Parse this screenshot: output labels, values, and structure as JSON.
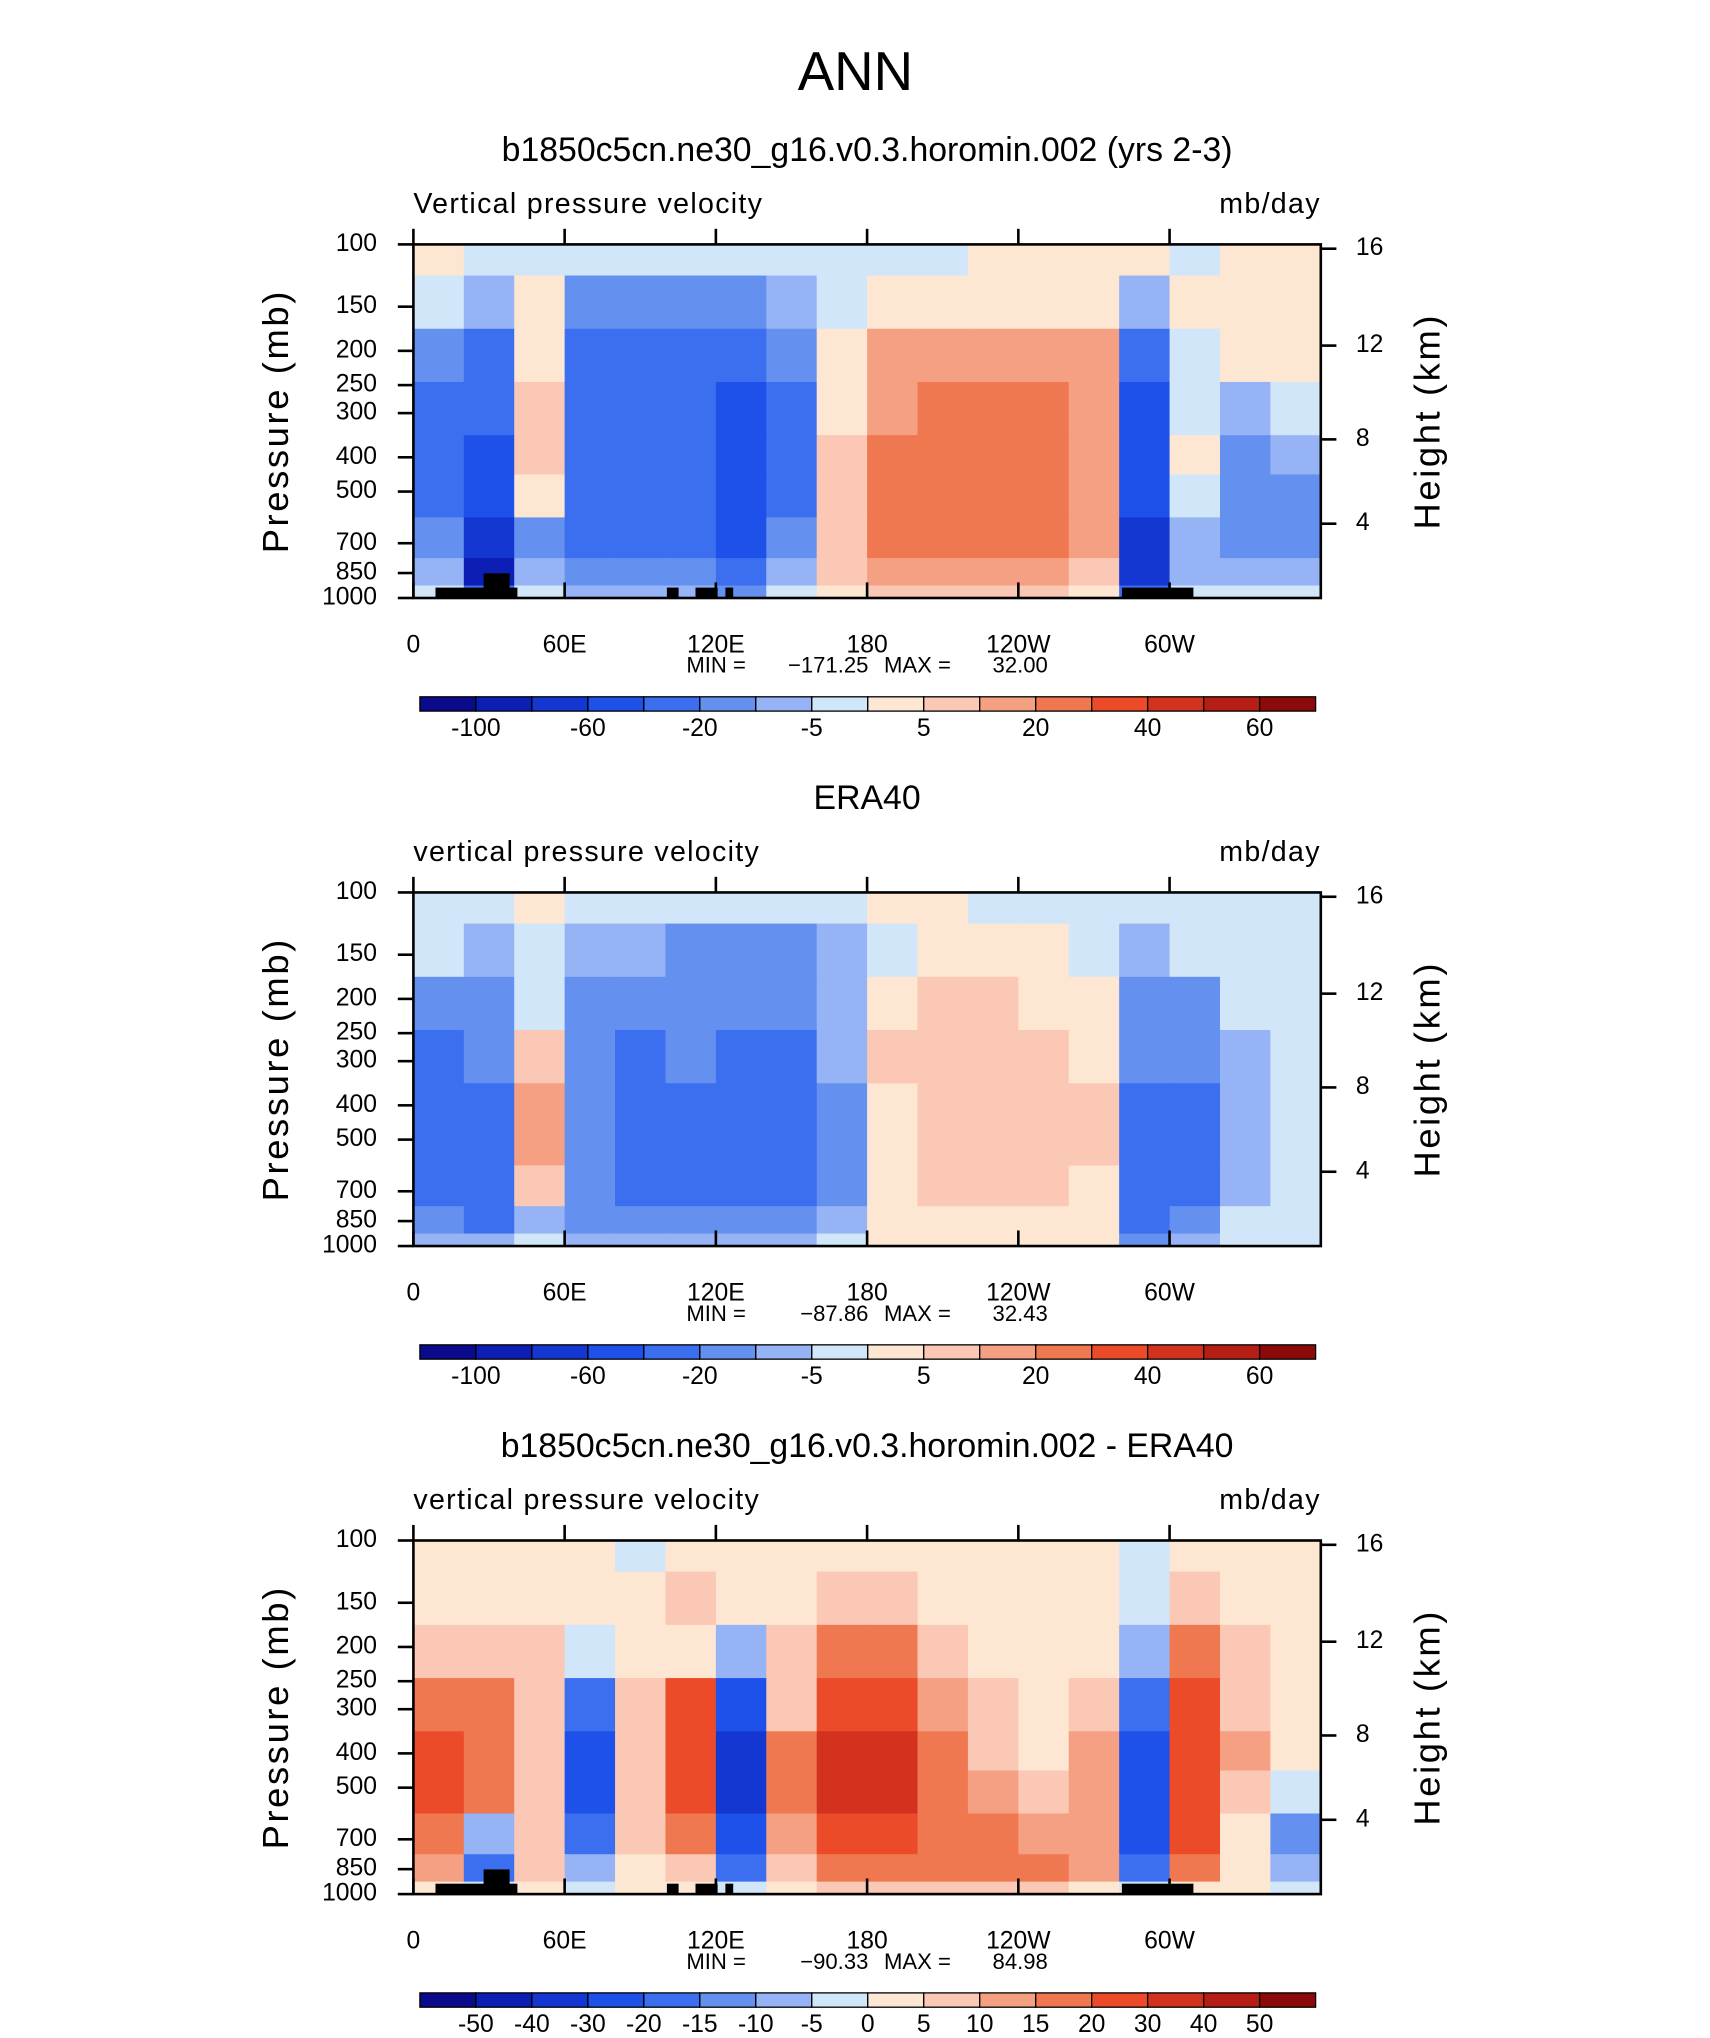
{
  "title": "ANN",
  "chart_data": [
    {
      "type": "contour",
      "title": "b1850c5cn.ne30_g16.v0.3.horomin.002 (yrs 2-3)",
      "subtitle": "Vertical pressure velocity",
      "units": "mb/day",
      "ylabel": "Pressure (mb)",
      "y2label": "Height (km)",
      "x": [
        10,
        30,
        50,
        70,
        90,
        110,
        130,
        150,
        170,
        190,
        210,
        230,
        250,
        270,
        290,
        310,
        330,
        350
      ],
      "y": [
        100,
        150,
        200,
        300,
        400,
        500,
        700,
        850,
        1000
      ],
      "z": [
        [
          5,
          -5,
          -5,
          -5,
          -5,
          -5,
          -5,
          -5,
          -5,
          -5,
          0,
          5,
          5,
          5,
          5,
          -5,
          5,
          5
        ],
        [
          -5,
          -10,
          5,
          -20,
          -20,
          -20,
          -20,
          -10,
          -5,
          5,
          5,
          5,
          5,
          5,
          -10,
          5,
          5,
          5
        ],
        [
          -20,
          -40,
          5,
          -40,
          -40,
          -40,
          -40,
          -20,
          5,
          20,
          20,
          20,
          20,
          20,
          -40,
          -5,
          5,
          5
        ],
        [
          -40,
          -40,
          10,
          -40,
          -40,
          -40,
          -60,
          -40,
          5,
          20,
          30,
          30,
          30,
          20,
          -60,
          -5,
          -10,
          -5
        ],
        [
          -40,
          -60,
          10,
          -40,
          -40,
          -40,
          -60,
          -40,
          10,
          30,
          30,
          30,
          30,
          20,
          -60,
          5,
          -20,
          -10
        ],
        [
          -40,
          -60,
          5,
          -40,
          -40,
          -40,
          -60,
          -40,
          10,
          30,
          30,
          30,
          30,
          20,
          -60,
          -5,
          -20,
          -20
        ],
        [
          -20,
          -80,
          -20,
          -40,
          -40,
          -40,
          -60,
          -20,
          10,
          30,
          30,
          30,
          30,
          20,
          -80,
          -10,
          -20,
          -20
        ],
        [
          -10,
          -100,
          -10,
          -20,
          -20,
          -20,
          -40,
          -10,
          10,
          20,
          20,
          20,
          20,
          10,
          -80,
          -10,
          -10,
          -10
        ],
        [
          -5,
          -40,
          -5,
          -10,
          -10,
          -10,
          -20,
          -5,
          5,
          10,
          10,
          10,
          10,
          5,
          -40,
          -5,
          -5,
          -5
        ]
      ],
      "xlim": [
        0,
        360
      ],
      "xticks": [
        0,
        {
          "value": 60,
          "label": "60E"
        },
        {
          "value": 120,
          "label": "120E"
        },
        180,
        {
          "value": 240,
          "label": "120W"
        },
        {
          "value": 300,
          "label": "60W"
        }
      ],
      "ylim": [
        1000,
        100
      ],
      "ylog": true,
      "yticks": [
        100,
        150,
        200,
        250,
        300,
        400,
        500,
        700,
        850,
        1000
      ],
      "y2ticks": [
        4,
        8,
        12,
        16
      ],
      "stats": {
        "min_text": "MIN =",
        "min": {
          "value": -171.25,
          "label": "−171.25"
        },
        "max_text": "MAX =",
        "max": {
          "value": 32,
          "label": "32.00"
        }
      },
      "levels": [
        -100,
        -80,
        -60,
        -40,
        -20,
        -10,
        -5,
        0,
        5,
        10,
        20,
        30,
        40,
        50,
        60
      ],
      "colorbar_ticks": [
        -100,
        -60,
        -20,
        -5,
        5,
        20,
        40,
        60
      ],
      "colors": [
        "#0a0a8c",
        "#0c1eb4",
        "#1437d2",
        "#1e50ea",
        "#3c6ef0",
        "#6490f0",
        "#96b4f5",
        "#d2e6fa",
        "#fde6d2",
        "#fac8b4",
        "#f5a082",
        "#f07850",
        "#eb4b28",
        "#d2321e",
        "#b41e14",
        "#8c0a0a"
      ]
    },
    {
      "type": "contour",
      "title": "ERA40",
      "subtitle": "vertical pressure velocity",
      "units": "mb/day",
      "ylabel": "Pressure (mb)",
      "y2label": "Height (km)",
      "x": [
        10,
        30,
        50,
        70,
        90,
        110,
        130,
        150,
        170,
        190,
        210,
        230,
        250,
        270,
        290,
        310,
        330,
        350
      ],
      "y": [
        100,
        150,
        200,
        300,
        400,
        500,
        700,
        850,
        1000
      ],
      "z": [
        [
          -5,
          -5,
          5,
          -5,
          -5,
          -5,
          -5,
          -5,
          -5,
          5,
          5,
          -5,
          -5,
          -5,
          -5,
          -5,
          -5,
          -5
        ],
        [
          -5,
          -10,
          -5,
          -10,
          -10,
          -20,
          -20,
          -20,
          -10,
          -5,
          5,
          5,
          5,
          -5,
          -10,
          -5,
          -5,
          -5
        ],
        [
          -20,
          -20,
          -5,
          -20,
          -20,
          -20,
          -20,
          -20,
          -10,
          5,
          10,
          10,
          5,
          5,
          -20,
          -20,
          -5,
          -5
        ],
        [
          -40,
          -20,
          10,
          -20,
          -40,
          -20,
          -40,
          -40,
          -10,
          10,
          10,
          10,
          10,
          5,
          -20,
          -20,
          -10,
          -5
        ],
        [
          -40,
          -40,
          20,
          -20,
          -40,
          -40,
          -40,
          -40,
          -20,
          5,
          10,
          10,
          10,
          10,
          -40,
          -40,
          -10,
          -5
        ],
        [
          -40,
          -40,
          20,
          -20,
          -40,
          -40,
          -40,
          -40,
          -20,
          5,
          10,
          10,
          10,
          10,
          -40,
          -40,
          -10,
          -5
        ],
        [
          -40,
          -40,
          10,
          -20,
          -40,
          -40,
          -40,
          -40,
          -20,
          5,
          10,
          10,
          10,
          5,
          -40,
          -40,
          -10,
          -5
        ],
        [
          -20,
          -40,
          -10,
          -20,
          -20,
          -20,
          -20,
          -20,
          -10,
          5,
          5,
          5,
          5,
          5,
          -40,
          -20,
          -5,
          -5
        ],
        [
          -10,
          -10,
          -5,
          -10,
          -10,
          -10,
          -10,
          -10,
          -5,
          5,
          5,
          5,
          5,
          5,
          -20,
          -10,
          -5,
          -5
        ]
      ],
      "xlim": [
        0,
        360
      ],
      "xticks": [
        0,
        {
          "value": 60,
          "label": "60E"
        },
        {
          "value": 120,
          "label": "120E"
        },
        180,
        {
          "value": 240,
          "label": "120W"
        },
        {
          "value": 300,
          "label": "60W"
        }
      ],
      "ylim": [
        1000,
        100
      ],
      "ylog": true,
      "yticks": [
        100,
        150,
        200,
        250,
        300,
        400,
        500,
        700,
        850,
        1000
      ],
      "y2ticks": [
        4,
        8,
        12,
        16
      ],
      "stats": {
        "min_text": "MIN =",
        "min": {
          "value": -87.86,
          "label": "−87.86"
        },
        "max_text": "MAX =",
        "max": {
          "value": 32.43,
          "label": "32.43"
        }
      },
      "levels": [
        -100,
        -80,
        -60,
        -40,
        -20,
        -10,
        -5,
        0,
        5,
        10,
        20,
        30,
        40,
        50,
        60
      ],
      "colorbar_ticks": [
        -100,
        -60,
        -20,
        -5,
        5,
        20,
        40,
        60
      ],
      "colors": [
        "#0a0a8c",
        "#0c1eb4",
        "#1437d2",
        "#1e50ea",
        "#3c6ef0",
        "#6490f0",
        "#96b4f5",
        "#d2e6fa",
        "#fde6d2",
        "#fac8b4",
        "#f5a082",
        "#f07850",
        "#eb4b28",
        "#d2321e",
        "#b41e14",
        "#8c0a0a"
      ]
    },
    {
      "type": "contour",
      "title": "b1850c5cn.ne30_g16.v0.3.horomin.002 - ERA40",
      "subtitle": "vertical pressure velocity",
      "units": "mb/day",
      "ylabel": "Pressure (mb)",
      "y2label": "Height (km)",
      "x": [
        10,
        30,
        50,
        70,
        90,
        110,
        130,
        150,
        170,
        190,
        210,
        230,
        250,
        270,
        290,
        310,
        330,
        350
      ],
      "y": [
        100,
        150,
        200,
        300,
        400,
        500,
        700,
        850,
        1000
      ],
      "z": [
        [
          5,
          5,
          5,
          5,
          0,
          5,
          5,
          5,
          5,
          5,
          5,
          5,
          5,
          5,
          -5,
          5,
          5,
          5
        ],
        [
          5,
          5,
          5,
          5,
          5,
          10,
          5,
          5,
          10,
          10,
          5,
          5,
          5,
          5,
          -5,
          10,
          5,
          5
        ],
        [
          10,
          10,
          10,
          -5,
          5,
          5,
          -10,
          10,
          20,
          20,
          10,
          5,
          5,
          5,
          -10,
          20,
          10,
          5
        ],
        [
          20,
          20,
          10,
          -20,
          10,
          30,
          -30,
          10,
          30,
          30,
          15,
          10,
          5,
          10,
          -20,
          30,
          10,
          5
        ],
        [
          30,
          20,
          10,
          -30,
          10,
          30,
          -40,
          20,
          40,
          40,
          20,
          10,
          5,
          15,
          -30,
          30,
          15,
          5
        ],
        [
          30,
          20,
          10,
          -30,
          10,
          30,
          -40,
          20,
          40,
          40,
          20,
          15,
          10,
          15,
          -30,
          30,
          10,
          -5
        ],
        [
          20,
          -10,
          10,
          -20,
          10,
          20,
          -30,
          15,
          30,
          30,
          20,
          20,
          15,
          15,
          -30,
          30,
          5,
          -15
        ],
        [
          15,
          -20,
          10,
          -10,
          5,
          10,
          -20,
          10,
          20,
          20,
          20,
          20,
          20,
          15,
          -20,
          20,
          5,
          -10
        ],
        [
          5,
          -5,
          5,
          -5,
          5,
          5,
          -5,
          5,
          10,
          10,
          10,
          10,
          10,
          5,
          -5,
          5,
          5,
          -5
        ]
      ],
      "xlim": [
        0,
        360
      ],
      "xticks": [
        0,
        {
          "value": 60,
          "label": "60E"
        },
        {
          "value": 120,
          "label": "120E"
        },
        180,
        {
          "value": 240,
          "label": "120W"
        },
        {
          "value": 300,
          "label": "60W"
        }
      ],
      "ylim": [
        1000,
        100
      ],
      "ylog": true,
      "yticks": [
        100,
        150,
        200,
        250,
        300,
        400,
        500,
        700,
        850,
        1000
      ],
      "y2ticks": [
        4,
        8,
        12,
        16
      ],
      "stats": {
        "min_text": "MIN =",
        "min": {
          "value": -90.33,
          "label": "−90.33"
        },
        "max_text": "MAX =",
        "max": {
          "value": 84.98,
          "label": "84.98"
        }
      },
      "levels": [
        -50,
        -40,
        -30,
        -20,
        -15,
        -10,
        -5,
        0,
        5,
        10,
        15,
        20,
        30,
        40,
        50
      ],
      "colorbar_ticks": [
        -50,
        -40,
        -30,
        -20,
        -15,
        -10,
        -5,
        0,
        5,
        10,
        15,
        20,
        30,
        40,
        50
      ],
      "colors": [
        "#0a0a8c",
        "#0c1eb4",
        "#1437d2",
        "#1e50ea",
        "#3c6ef0",
        "#6490f0",
        "#96b4f5",
        "#d2e6fa",
        "#fde6d2",
        "#fac8b4",
        "#f5a082",
        "#f07850",
        "#eb4b28",
        "#d2321e",
        "#b41e14",
        "#8c0a0a"
      ]
    }
  ]
}
